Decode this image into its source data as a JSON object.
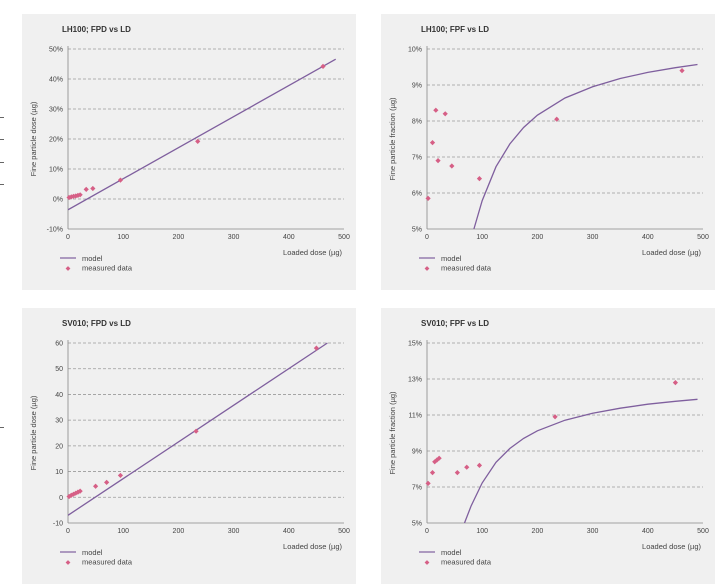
{
  "chart_data": [
    {
      "type": "scatter",
      "title": "LH100; FPD vs LD",
      "xlabel": "Loaded dose (µg)",
      "ylabel": "Fine particle dose (µg)",
      "xlim": [
        0,
        500
      ],
      "ylim": [
        -10,
        50
      ],
      "xticks": [
        0,
        100,
        200,
        300,
        400,
        500
      ],
      "xtick_labels": [
        "0",
        "100",
        "200",
        "300",
        "400",
        "500"
      ],
      "yticks": [
        -10,
        0,
        10,
        20,
        30,
        40,
        50
      ],
      "ytick_labels": [
        "-10%",
        "0%",
        "10%",
        "20%",
        "30%",
        "40%",
        "50%"
      ],
      "grid": true,
      "series": [
        {
          "name": "model",
          "kind": "line",
          "color": "#7f5f9e",
          "x": [
            0,
            485
          ],
          "y": [
            -3.6,
            46.6
          ]
        },
        {
          "name": "measured data",
          "kind": "scatter",
          "color": "#d65f86",
          "x": [
            2,
            6,
            10,
            14,
            18,
            22,
            33,
            45,
            95,
            235,
            462
          ],
          "y": [
            0.5,
            0.7,
            0.9,
            1.0,
            1.2,
            1.4,
            3.2,
            3.5,
            6.3,
            19.2,
            44.2
          ]
        }
      ]
    },
    {
      "type": "scatter",
      "title": "LH100; FPF vs LD",
      "xlabel": "Loaded dose (µg)",
      "ylabel": "Fine particle fraction (µg)",
      "xlim": [
        0,
        500
      ],
      "ylim": [
        5,
        10
      ],
      "xticks": [
        0,
        100,
        200,
        300,
        400,
        500
      ],
      "xtick_labels": [
        "0",
        "100",
        "200",
        "300",
        "400",
        "500"
      ],
      "yticks": [
        5,
        6,
        7,
        8,
        9,
        10
      ],
      "ytick_labels": [
        "5%",
        "6%",
        "7%",
        "8%",
        "9%",
        "10%"
      ],
      "grid": true,
      "series": [
        {
          "name": "model",
          "kind": "line",
          "color": "#7f5f9e",
          "x": [
            85,
            100,
            125,
            150,
            175,
            200,
            250,
            300,
            350,
            400,
            450,
            490
          ],
          "y": [
            5.0,
            5.79,
            6.73,
            7.36,
            7.82,
            8.16,
            8.64,
            8.95,
            9.18,
            9.35,
            9.48,
            9.57
          ]
        },
        {
          "name": "measured data",
          "kind": "scatter",
          "color": "#d65f86",
          "x": [
            2,
            10,
            16,
            20,
            33,
            45,
            95,
            235,
            462
          ],
          "y": [
            5.85,
            7.4,
            8.3,
            6.9,
            8.2,
            6.75,
            6.4,
            8.05,
            9.4
          ]
        }
      ]
    },
    {
      "type": "scatter",
      "title": "SV010; FPD vs LD",
      "xlabel": "Loaded dose (µg)",
      "ylabel": "Fine particle dose (µg)",
      "xlim": [
        0,
        500
      ],
      "ylim": [
        -10,
        60
      ],
      "xticks": [
        0,
        100,
        200,
        300,
        400,
        500
      ],
      "xtick_labels": [
        "0",
        "100",
        "200",
        "300",
        "400",
        "500"
      ],
      "yticks": [
        -10,
        0,
        10,
        20,
        30,
        40,
        50,
        60
      ],
      "ytick_labels": [
        "-10",
        "0",
        "10",
        "20",
        "30",
        "40",
        "50",
        "60"
      ],
      "grid": true,
      "series": [
        {
          "name": "model",
          "kind": "line",
          "color": "#7f5f9e",
          "x": [
            0,
            470
          ],
          "y": [
            -7,
            60
          ]
        },
        {
          "name": "measured data",
          "kind": "scatter",
          "color": "#d65f86",
          "x": [
            2,
            6,
            10,
            14,
            18,
            22,
            50,
            70,
            95,
            232,
            450
          ],
          "y": [
            0.3,
            0.8,
            1.2,
            1.6,
            2.0,
            2.4,
            4.3,
            5.8,
            8.5,
            25.7,
            58
          ]
        }
      ]
    },
    {
      "type": "scatter",
      "title": "SV010; FPF vs LD",
      "xlabel": "Loaded dose (µg)",
      "ylabel": "Fine particle fraction (µg)",
      "xlim": [
        0,
        500
      ],
      "ylim": [
        5,
        15
      ],
      "xticks": [
        0,
        100,
        200,
        300,
        400,
        500
      ],
      "xtick_labels": [
        "0",
        "100",
        "200",
        "300",
        "400",
        "500"
      ],
      "yticks": [
        5,
        7,
        9,
        11,
        13,
        15
      ],
      "ytick_labels": [
        "5%",
        "7%",
        "9%",
        "11%",
        "13%",
        "15%"
      ],
      "grid": true,
      "series": [
        {
          "name": "model",
          "kind": "line",
          "color": "#7f5f9e",
          "x": [
            68,
            80,
            100,
            125,
            150,
            175,
            200,
            250,
            300,
            350,
            400,
            450,
            490
          ],
          "y": [
            5.0,
            5.96,
            7.23,
            8.37,
            9.14,
            9.7,
            10.12,
            10.71,
            11.1,
            11.38,
            11.6,
            11.76,
            11.87
          ]
        },
        {
          "name": "measured data",
          "kind": "scatter",
          "color": "#d65f86",
          "x": [
            2,
            10,
            14,
            18,
            22,
            55,
            72,
            95,
            232,
            450
          ],
          "y": [
            7.2,
            7.8,
            8.4,
            8.5,
            8.6,
            7.8,
            8.1,
            8.2,
            10.9,
            12.8
          ]
        }
      ]
    }
  ]
}
